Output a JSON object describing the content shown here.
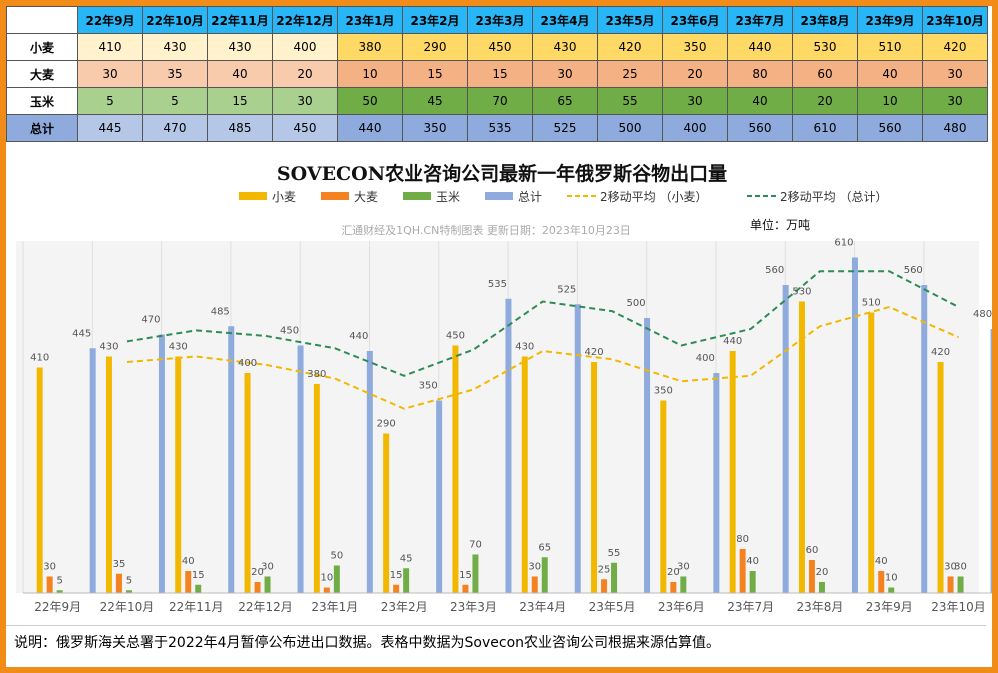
{
  "table": {
    "months": [
      "22年9月",
      "22年10月",
      "22年11月",
      "22年12月",
      "23年1月",
      "23年2月",
      "23年3月",
      "23年4月",
      "23年5月",
      "23年6月",
      "23年7月",
      "23年8月",
      "23年9月",
      "23年10月"
    ],
    "rows": [
      {
        "label": "小麦",
        "key": "wheat",
        "values": [
          410,
          430,
          430,
          400,
          380,
          290,
          450,
          430,
          420,
          350,
          440,
          530,
          510,
          420
        ]
      },
      {
        "label": "大麦",
        "key": "barley",
        "values": [
          30,
          35,
          40,
          20,
          10,
          15,
          15,
          30,
          25,
          20,
          80,
          60,
          40,
          30
        ]
      },
      {
        "label": "玉米",
        "key": "corn",
        "values": [
          5,
          5,
          15,
          30,
          50,
          45,
          70,
          65,
          55,
          30,
          40,
          20,
          10,
          30
        ]
      },
      {
        "label": "总计",
        "key": "total",
        "values": [
          445,
          470,
          485,
          450,
          440,
          350,
          535,
          525,
          500,
          400,
          560,
          610,
          560,
          480
        ]
      }
    ]
  },
  "chart_data": {
    "type": "bar",
    "title": "SOVECON农业咨询公司最新一年俄罗斯谷物出口量",
    "source_note": "汇通财经及1QH.CN特制图表 更新日期：2023年10月23日",
    "unit": "单位：万吨",
    "categories": [
      "22年9月",
      "22年10月",
      "22年11月",
      "22年12月",
      "23年1月",
      "23年2月",
      "23年3月",
      "23年4月",
      "23年5月",
      "23年6月",
      "23年7月",
      "23年8月",
      "23年9月",
      "23年10月"
    ],
    "series": [
      {
        "name": "小麦",
        "kind": "bar",
        "color": "#f2b800",
        "values": [
          410,
          430,
          430,
          400,
          380,
          290,
          450,
          430,
          420,
          350,
          440,
          530,
          510,
          420
        ]
      },
      {
        "name": "大麦",
        "kind": "bar",
        "color": "#f58220",
        "values": [
          30,
          35,
          40,
          20,
          10,
          15,
          15,
          30,
          25,
          20,
          80,
          60,
          40,
          30
        ]
      },
      {
        "name": "玉米",
        "kind": "bar",
        "color": "#70ad47",
        "values": [
          5,
          5,
          15,
          30,
          50,
          45,
          70,
          65,
          55,
          30,
          40,
          20,
          10,
          30
        ]
      },
      {
        "name": "总计",
        "kind": "bar",
        "color": "#8faadc",
        "values": [
          445,
          470,
          485,
          450,
          440,
          350,
          535,
          525,
          500,
          400,
          560,
          610,
          560,
          480
        ]
      },
      {
        "name": "2移动平均 （小麦）",
        "kind": "moving-average",
        "of": "小麦",
        "color": "#f2b800",
        "values": [
          null,
          420,
          430,
          415,
          390,
          335,
          370,
          440,
          425,
          385,
          395,
          485,
          520,
          465
        ]
      },
      {
        "name": "2移动平均 （总计）",
        "kind": "moving-average",
        "of": "总计",
        "color": "#2e8b57",
        "values": [
          null,
          457.5,
          477.5,
          467.5,
          445,
          395,
          442.5,
          530,
          512.5,
          450,
          480,
          585,
          585,
          520
        ]
      }
    ],
    "ylim": [
      0,
      640
    ],
    "grid": "vertical",
    "legend": "top-center"
  },
  "note": {
    "text": "说明：俄罗斯海关总署于2022年4月暂停公布进出口数据。表格中数据为Sovecon农业咨询公司根据来源估算值。"
  },
  "colors": {
    "border": "#f28c18",
    "month_header": "#29b6f6"
  }
}
